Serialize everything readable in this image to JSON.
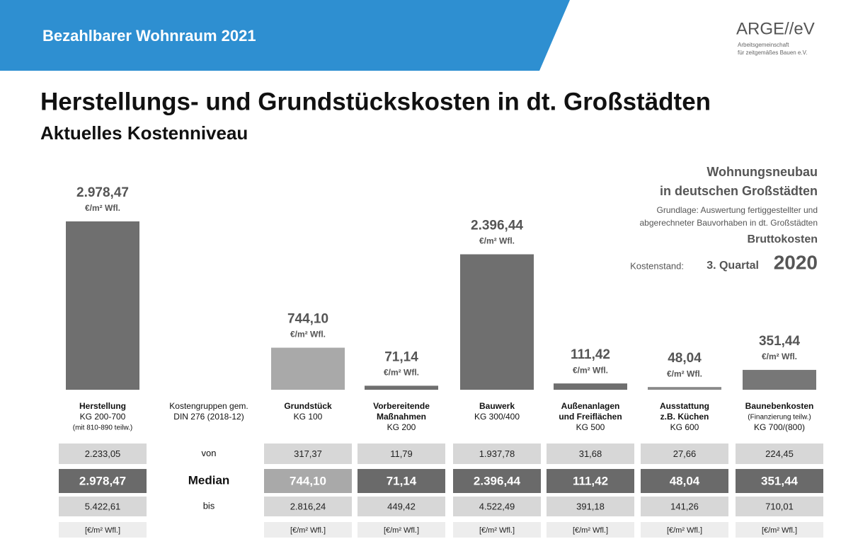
{
  "header": {
    "banner": "Bezahlbarer Wohnraum 2021",
    "logo": "ARGE//eV",
    "logo_sub": [
      "Arbeitsgemeinschaft",
      "für zeitgemäßes Bauen e.V."
    ]
  },
  "chart_data": {
    "type": "bar",
    "title": "Herstellungs- und Grundstückskosten in dt. Großstädten",
    "subtitle": "Aktuelles Kostenniveau",
    "info": {
      "lines": [
        "Wohnungsneubau",
        "in deutschen Großstädten"
      ],
      "basis": [
        "Grundlage: Auswertung fertiggestellter und",
        "abgerechneter Bauvorhaben in dt. Großstädten"
      ],
      "kind": "Bruttokosten",
      "stand_label": "Kostenstand:",
      "stand_quarter": "3. Quartal",
      "stand_year": "2020"
    },
    "value_unit": "€/m² Wfl.",
    "categories": [
      {
        "title": [
          "Herstellung"
        ],
        "detail": [
          "KG 200-700",
          "(mit 810-890 teilw.)"
        ]
      },
      {
        "title": [
          "Grundstück"
        ],
        "detail": [
          "KG 100"
        ]
      },
      {
        "title": [
          "Vorbereitende",
          "Maßnahmen"
        ],
        "detail": [
          "KG 200"
        ]
      },
      {
        "title": [
          "Bauwerk"
        ],
        "detail": [
          "KG 300/400"
        ]
      },
      {
        "title": [
          "Außenanlagen",
          "und Freiflächen"
        ],
        "detail": [
          "KG 500"
        ]
      },
      {
        "title": [
          "Ausstattung",
          "z.B. Küchen"
        ],
        "detail": [
          "KG 600"
        ]
      },
      {
        "title": [
          "Baunebenkosten"
        ],
        "detail": [
          "(Finanzierung teilw.)",
          "KG 700/(800)"
        ]
      }
    ],
    "values": [
      2978.47,
      744.1,
      71.14,
      2396.44,
      111.42,
      48.04,
      351.44
    ],
    "value_labels": [
      "2.978,47",
      "744,10",
      "71,14",
      "2.396,44",
      "111,42",
      "48,04",
      "351,44"
    ],
    "colors": [
      "#6f6f6f",
      "#a9a9a9",
      "#6f6f6f",
      "#6f6f6f",
      "#6f6f6f",
      "#8a8a8a",
      "#777777"
    ]
  },
  "table": {
    "group_label": [
      "Kostengruppen gem.",
      "DIN 276 (2018-12)"
    ],
    "rows": [
      {
        "label": "von",
        "values": [
          "2.233,05",
          "317,37",
          "11,79",
          "1.937,78",
          "31,68",
          "27,66",
          "224,45"
        ]
      },
      {
        "label": "Median",
        "values": [
          "2.978,47",
          "744,10",
          "71,14",
          "2.396,44",
          "111,42",
          "48,04",
          "351,44"
        ]
      },
      {
        "label": "bis",
        "values": [
          "5.422,61",
          "2.816,24",
          "449,42",
          "4.522,49",
          "391,18",
          "141,26",
          "710,01"
        ]
      }
    ],
    "unit": "[€/m² Wfl.]"
  }
}
